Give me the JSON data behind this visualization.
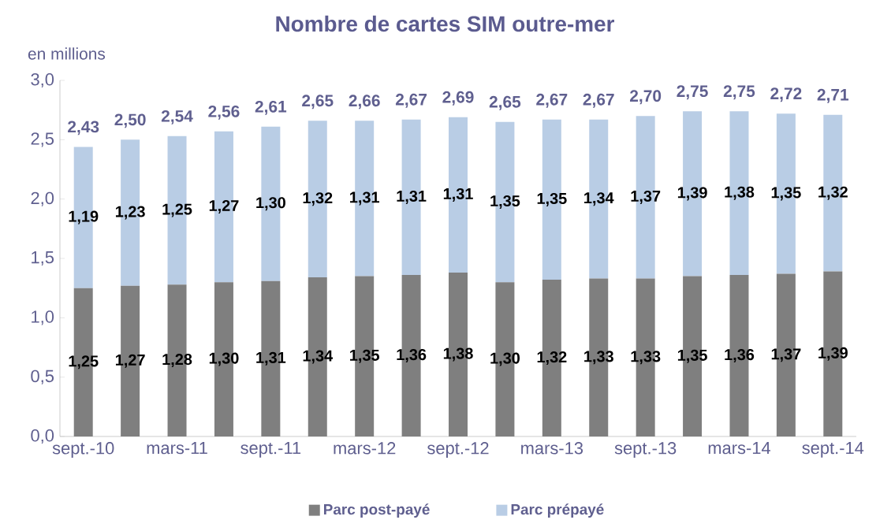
{
  "chart_data": {
    "type": "bar",
    "title": "Nombre de cartes SIM outre-mer",
    "ylabel": "en millions",
    "categories": [
      "sept.-10",
      null,
      "mars-11",
      null,
      "sept.-11",
      null,
      "mars-12",
      null,
      "sept.-12",
      null,
      "mars-13",
      null,
      "sept.-13",
      null,
      "mars-14",
      null,
      "sept.-14"
    ],
    "stacked": true,
    "legend": "bottom",
    "series": [
      {
        "name": "Parc post-payé",
        "color": "#7f7f7f",
        "values": [
          1.25,
          1.27,
          1.28,
          1.3,
          1.31,
          1.34,
          1.35,
          1.36,
          1.38,
          1.3,
          1.32,
          1.33,
          1.33,
          1.35,
          1.36,
          1.37,
          1.39
        ],
        "value_labels": [
          "1,25",
          "1,27",
          "1,28",
          "1,30",
          "1,31",
          "1,34",
          "1,35",
          "1,36",
          "1,38",
          "1,30",
          "1,32",
          "1,33",
          "1,33",
          "1,35",
          "1,36",
          "1,37",
          "1,39"
        ]
      },
      {
        "name": "Parc prépayé",
        "color": "#b9cde5",
        "values": [
          1.19,
          1.23,
          1.25,
          1.27,
          1.3,
          1.32,
          1.31,
          1.31,
          1.31,
          1.35,
          1.35,
          1.34,
          1.37,
          1.39,
          1.38,
          1.35,
          1.32
        ],
        "value_labels": [
          "1,19",
          "1,23",
          "1,25",
          "1,27",
          "1,30",
          "1,32",
          "1,31",
          "1,31",
          "1,31",
          "1,35",
          "1,35",
          "1,34",
          "1,37",
          "1,39",
          "1,38",
          "1,35",
          "1,32"
        ]
      }
    ],
    "totals": [
      "2,43",
      "2,50",
      "2,54",
      "2,56",
      "2,61",
      "2,65",
      "2,66",
      "2,67",
      "2,69",
      "2,65",
      "2,67",
      "2,67",
      "2,70",
      "2,75",
      "2,75",
      "2,72",
      "2,71"
    ],
    "ylim": [
      0,
      3
    ],
    "yticks": [
      {
        "value": 0,
        "label": "0,0"
      },
      {
        "value": 0.5,
        "label": "0,5"
      },
      {
        "value": 1,
        "label": "1,0"
      },
      {
        "value": 1.5,
        "label": "1,5"
      },
      {
        "value": 2,
        "label": "2,0"
      },
      {
        "value": 2.5,
        "label": "2,5"
      },
      {
        "value": 3,
        "label": "3,0"
      }
    ]
  }
}
